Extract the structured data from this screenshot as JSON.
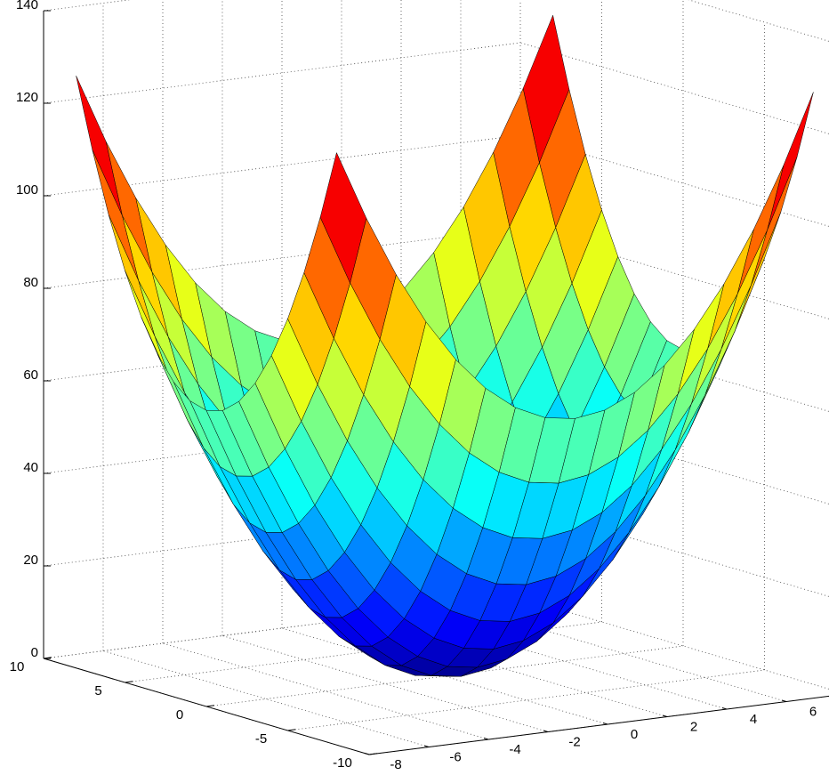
{
  "chart_data": {
    "type": "surface",
    "x": [
      -8,
      -7,
      -6,
      -5,
      -4,
      -3,
      -2,
      -1,
      0,
      1,
      2,
      3,
      4,
      5,
      6,
      7,
      8
    ],
    "y": [
      -8,
      -7,
      -6,
      -5,
      -4,
      -3,
      -2,
      -1,
      0,
      1,
      2,
      3,
      4,
      5,
      6,
      7,
      8
    ],
    "z": [
      [
        128,
        113,
        100,
        89,
        80,
        73,
        68,
        65,
        64,
        65,
        68,
        73,
        80,
        89,
        100,
        113,
        128
      ],
      [
        113,
        98,
        85,
        74,
        65,
        58,
        53,
        50,
        49,
        50,
        53,
        58,
        65,
        74,
        85,
        98,
        113
      ],
      [
        100,
        85,
        72,
        61,
        52,
        45,
        40,
        37,
        36,
        37,
        40,
        45,
        52,
        61,
        72,
        85,
        100
      ],
      [
        89,
        74,
        61,
        50,
        41,
        34,
        29,
        26,
        25,
        26,
        29,
        34,
        41,
        50,
        61,
        74,
        89
      ],
      [
        80,
        65,
        52,
        41,
        32,
        25,
        20,
        17,
        16,
        17,
        20,
        25,
        32,
        41,
        52,
        65,
        80
      ],
      [
        73,
        58,
        45,
        34,
        25,
        18,
        13,
        10,
        9,
        10,
        13,
        18,
        25,
        34,
        45,
        58,
        73
      ],
      [
        68,
        53,
        40,
        29,
        20,
        13,
        8,
        5,
        4,
        5,
        8,
        13,
        20,
        29,
        40,
        53,
        68
      ],
      [
        65,
        50,
        37,
        26,
        17,
        10,
        5,
        2,
        1,
        2,
        5,
        10,
        17,
        26,
        37,
        50,
        65
      ],
      [
        64,
        49,
        36,
        25,
        16,
        9,
        4,
        1,
        0,
        1,
        4,
        9,
        16,
        25,
        36,
        49,
        64
      ],
      [
        65,
        50,
        37,
        26,
        17,
        10,
        5,
        2,
        1,
        2,
        5,
        10,
        17,
        26,
        37,
        50,
        65
      ],
      [
        68,
        53,
        40,
        29,
        20,
        13,
        8,
        5,
        4,
        5,
        8,
        13,
        20,
        29,
        40,
        53,
        68
      ],
      [
        73,
        58,
        45,
        34,
        25,
        18,
        13,
        10,
        9,
        10,
        13,
        18,
        25,
        34,
        45,
        58,
        73
      ],
      [
        80,
        65,
        52,
        41,
        32,
        25,
        20,
        17,
        16,
        17,
        20,
        25,
        32,
        41,
        52,
        65,
        80
      ],
      [
        89,
        74,
        61,
        50,
        41,
        34,
        29,
        26,
        25,
        26,
        29,
        34,
        41,
        50,
        61,
        74,
        89
      ],
      [
        100,
        85,
        72,
        61,
        52,
        45,
        40,
        37,
        36,
        37,
        40,
        45,
        52,
        61,
        72,
        85,
        100
      ],
      [
        113,
        98,
        85,
        74,
        65,
        58,
        53,
        50,
        49,
        50,
        53,
        58,
        65,
        74,
        85,
        98,
        113
      ],
      [
        128,
        113,
        100,
        89,
        80,
        73,
        68,
        65,
        64,
        65,
        68,
        73,
        80,
        89,
        100,
        113,
        128
      ]
    ],
    "xlim": [
      -8,
      8
    ],
    "xticks": [
      -8,
      -6,
      -4,
      -2,
      0,
      2,
      4,
      6
    ],
    "ylim": [
      -10,
      10
    ],
    "yticks": [
      -10,
      -5,
      0,
      5,
      10
    ],
    "zlim": [
      0,
      140
    ],
    "zticks": [
      0,
      20,
      40,
      60,
      80,
      100,
      120,
      140
    ],
    "grid": true,
    "colormap": "jet",
    "edgecolor": "#000000"
  }
}
